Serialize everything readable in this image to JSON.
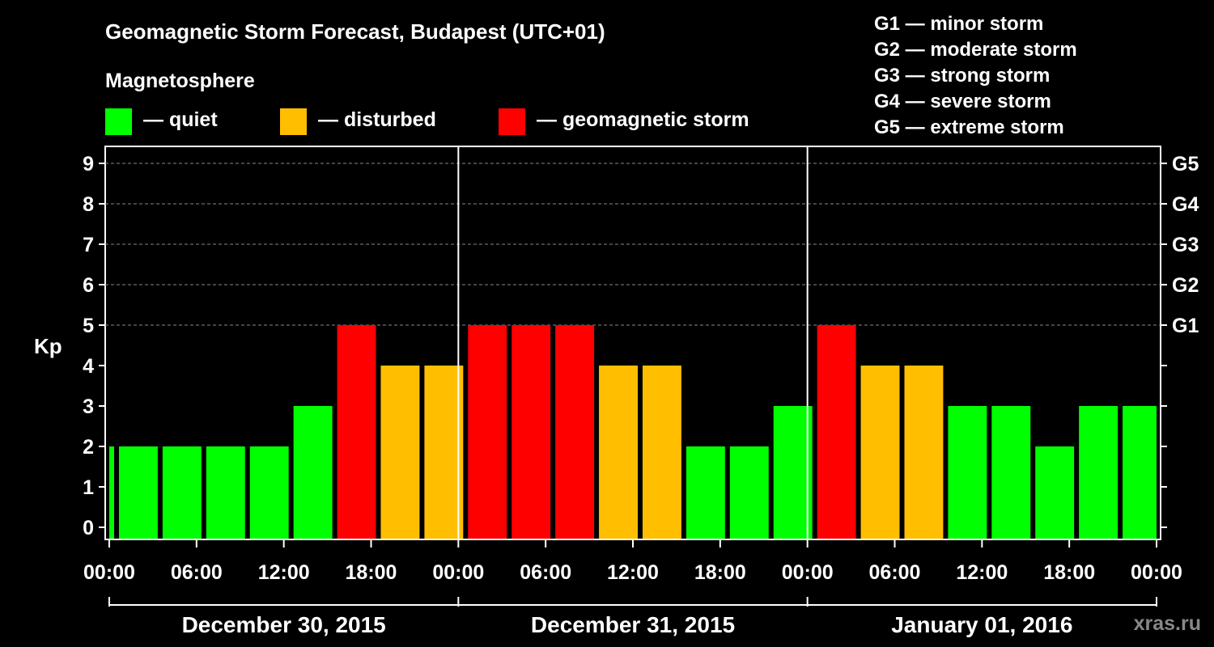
{
  "chart_data": {
    "type": "bar",
    "title": "Geomagnetic Storm Forecast, Budapest (UTC+01)",
    "subtitle": "Magnetosphere",
    "ylabel": "Kp",
    "ylim": [
      0,
      9
    ],
    "y_ticks": [
      "0",
      "1",
      "2",
      "3",
      "4",
      "5",
      "6",
      "7",
      "8",
      "9"
    ],
    "right_axis_ticks": [
      {
        "value": 5,
        "label": "G1"
      },
      {
        "value": 6,
        "label": "G2"
      },
      {
        "value": 7,
        "label": "G3"
      },
      {
        "value": 8,
        "label": "G4"
      },
      {
        "value": 9,
        "label": "G5"
      }
    ],
    "x_ticks": [
      "00:00",
      "06:00",
      "12:00",
      "18:00",
      "00:00",
      "06:00",
      "12:00",
      "18:00",
      "00:00",
      "06:00",
      "12:00",
      "18:00",
      "00:00"
    ],
    "days": [
      "December 30, 2015",
      "December 31, 2015",
      "January 01, 2016"
    ],
    "interval_hours": 3,
    "values": [
      2,
      2,
      2,
      2,
      2,
      3,
      5,
      4,
      4,
      5,
      5,
      5,
      4,
      4,
      2,
      2,
      3,
      5,
      4,
      4,
      3,
      3,
      2,
      3,
      3
    ],
    "legend": [
      {
        "label": "— quiet",
        "color": "#00ff00"
      },
      {
        "label": "— disturbed",
        "color": "#ffbf00"
      },
      {
        "label": "— geomagnetic storm",
        "color": "#ff0000"
      }
    ],
    "storm_levels": [
      "G1 — minor storm",
      "G2 — moderate storm",
      "G3 — strong storm",
      "G4 — severe storm",
      "G5 — extreme storm"
    ],
    "grid": true
  },
  "colors": {
    "quiet": "#00ff00",
    "disturbed": "#ffbf00",
    "storm": "#ff0000"
  },
  "watermark": "xras.ru"
}
